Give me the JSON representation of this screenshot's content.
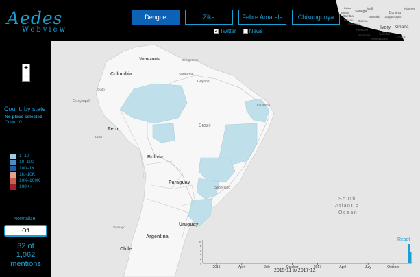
{
  "app": {
    "logo_line1": "Aedes",
    "logo_line2": "Webview"
  },
  "tabs": [
    {
      "label": "Dengue",
      "active": true
    },
    {
      "label": "Zika",
      "active": false
    },
    {
      "label": "Febre Amarela",
      "active": false
    },
    {
      "label": "Chikungunya",
      "active": false
    }
  ],
  "filters": [
    {
      "label": "Twitter",
      "checked": true
    },
    {
      "label": "News",
      "checked": false
    }
  ],
  "zoom": {
    "in": "+",
    "out": "-"
  },
  "sidebar": {
    "count_title": "Count: by state",
    "no_place": "No place selected",
    "count": "Count: 0",
    "normalize_label": "Normalize",
    "normalize_value": "Off",
    "mentions_line1": "32 of",
    "mentions_line2": "1,062",
    "mentions_line3": "mentions"
  },
  "legend": [
    {
      "label": "1–10",
      "color": "#9ecae1"
    },
    {
      "label": "10–100",
      "color": "#4a8fc0"
    },
    {
      "label": "100–1K",
      "color": "#1f5fa0"
    },
    {
      "label": "1K–10K",
      "color": "#e8a08a"
    },
    {
      "label": "10K–100K",
      "color": "#c8604a"
    },
    {
      "label": "100K+",
      "color": "#a01e2e"
    }
  ],
  "map_labels": {
    "venezuela": "Venezuela",
    "colombia": "Colombia",
    "georgetown": "Georgetown",
    "suriname": "Suriname",
    "guyane": "Guyane",
    "quito": "Quito",
    "guayaquil": "Guayaquil",
    "peru": "Peru",
    "lima": "Lima",
    "fortaleza": "Fortaleza",
    "brazil": "Brazil",
    "bolivia": "Bolivia",
    "paraguay": "Paraguay",
    "sao_paulo": "São Paulo",
    "uruguay": "Uruguay",
    "argentina": "Argentina",
    "santiago": "Santiago",
    "chile": "Chile",
    "ocean_l1": "South",
    "ocean_l2": "Atlantic",
    "ocean_l3": "Ocean",
    "ivory": "Ivory",
    "coast": "Coast",
    "ghana": "Ghana",
    "accra": "Accra",
    "conakry": "Conakry",
    "guinea": "Guinea",
    "senegal": "Senegal",
    "dakar": "Dakar",
    "bissau": "Bissau",
    "freetown": "Freetown",
    "monrovia": "Monrovia",
    "mali": "Mali",
    "bamako": "Bamako",
    "gambia": "Gambia",
    "banjul": "Banjul",
    "burkina": "Burkina",
    "ouagadougou": "Ouagadougou",
    "niamey": "Niamey",
    "yamoussoukro": "Yamoussoukro"
  },
  "timeline": {
    "ticks": [
      "2016",
      "April",
      "July",
      "October",
      "2017",
      "April",
      "July",
      "October"
    ],
    "y_ticks": [
      "10",
      "8",
      "6",
      "4",
      "2",
      "0"
    ],
    "date_range": "2015-11 to 2017-12",
    "reset": "Reset"
  },
  "colors": {
    "accent": "#1a9fd4",
    "active_tab": "#0d62b6",
    "state_fill": "#bfe0ea"
  }
}
